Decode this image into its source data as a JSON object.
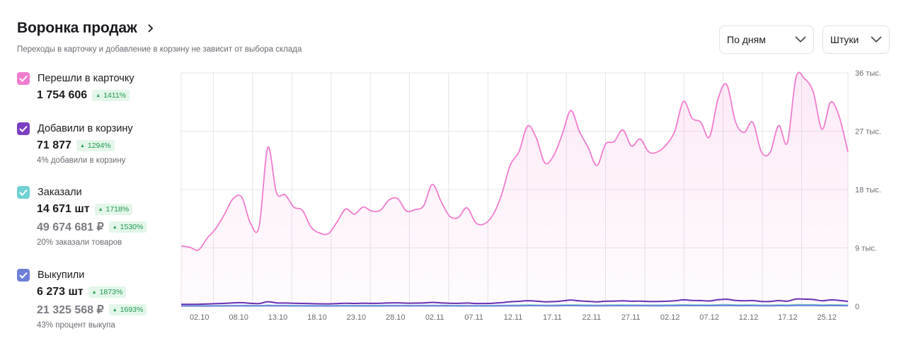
{
  "header": {
    "title": "Воронка продаж",
    "subtitle": "Переходы в карточку и добавление в корзину не зависит от выбора склада"
  },
  "controls": {
    "period": "По дням",
    "units": "Штуки"
  },
  "metrics": [
    {
      "label": "Перешли в карточку",
      "value": "1 754 606",
      "change": "1411%",
      "color": "#f07ccf"
    },
    {
      "label": "Добавили в корзину",
      "value": "71 877",
      "change": "1294%",
      "note": "4% добавили в корзину",
      "color": "#7a3fc0"
    },
    {
      "label": "Заказали",
      "value": "14 671 шт",
      "change": "1718%",
      "value2": "49 674 681 ₽",
      "change2": "1530%",
      "note": "20% заказали товаров",
      "color": "#6fd0d0"
    },
    {
      "label": "Выкупили",
      "value": "6 273 шт",
      "change": "1873%",
      "value2": "21 325 568 ₽",
      "change2": "1693%",
      "note": "43% процент выкупа",
      "color": "#6e7fd9"
    }
  ],
  "chart_data": {
    "type": "area",
    "x_ticks": [
      "02.10",
      "08.10",
      "13.10",
      "18.10",
      "23.10",
      "28.10",
      "02.11",
      "07.11",
      "12.11",
      "17.11",
      "22.11",
      "27.11",
      "02.12",
      "07.12",
      "12.12",
      "17.12",
      "25.12"
    ],
    "y_ticks": [
      "0",
      "9 тыс.",
      "18 тыс.",
      "27 тыс.",
      "36 тыс."
    ],
    "ylim": [
      0,
      36000
    ],
    "grid": true,
    "series": [
      {
        "name": "Перешли в карточку",
        "color": "#f07ccf",
        "fill": true,
        "values": [
          9300,
          9100,
          8700,
          10500,
          12000,
          14200,
          16600,
          16800,
          12800,
          12300,
          24500,
          17500,
          17200,
          15300,
          14800,
          12200,
          11300,
          11200,
          13000,
          15000,
          14200,
          15300,
          14700,
          14800,
          16400,
          16600,
          14700,
          14900,
          15500,
          18800,
          16200,
          13900,
          13700,
          15200,
          12900,
          12700,
          14100,
          17200,
          21800,
          23800,
          27800,
          26000,
          22100,
          23200,
          26500,
          30200,
          26900,
          24500,
          21700,
          25000,
          25400,
          27200,
          24700,
          25800,
          23800,
          23800,
          24900,
          27000,
          31600,
          29000,
          28400,
          26100,
          32000,
          34200,
          28500,
          26800,
          28400,
          23800,
          23700,
          27900,
          25200,
          35300,
          35100,
          33000,
          27300,
          31500,
          29200,
          23800
        ]
      },
      {
        "name": "Добавили в корзину",
        "color": "#6a2fb0",
        "fill": false,
        "values": [
          300,
          310,
          320,
          360,
          400,
          450,
          520,
          560,
          450,
          420,
          700,
          520,
          500,
          460,
          440,
          400,
          380,
          370,
          410,
          460,
          440,
          470,
          450,
          460,
          520,
          540,
          480,
          490,
          510,
          600,
          520,
          460,
          450,
          500,
          430,
          430,
          470,
          560,
          700,
          760,
          860,
          800,
          690,
          720,
          820,
          950,
          830,
          760,
          680,
          780,
          800,
          850,
          770,
          800,
          740,
          740,
          780,
          840,
          990,
          900,
          880,
          820,
          1000,
          1080,
          900,
          840,
          880,
          740,
          740,
          870,
          790,
          1100,
          1100,
          1040,
          850,
          980,
          910,
          740
        ]
      },
      {
        "name": "Заказали",
        "color": "#6fd0d0",
        "fill": false,
        "values": [
          70,
          70,
          75,
          80,
          90,
          100,
          110,
          120,
          100,
          95,
          150,
          115,
          110,
          105,
          100,
          95,
          90,
          88,
          95,
          105,
          100,
          108,
          104,
          106,
          118,
          122,
          110,
          112,
          116,
          135,
          120,
          106,
          104,
          114,
          100,
          100,
          108,
          126,
          155,
          168,
          190,
          178,
          155,
          160,
          182,
          210,
          186,
          170,
          152,
          174,
          178,
          190,
          172,
          178,
          165,
          165,
          174,
          188,
          220,
          200,
          196,
          182,
          222,
          240,
          200,
          186,
          196,
          165,
          165,
          194,
          176,
          245,
          245,
          232,
          190,
          218,
          202,
          165
        ]
      },
      {
        "name": "Выкупили",
        "color": "#6e7fd9",
        "fill": false,
        "values": [
          40,
          40,
          42,
          45,
          50,
          55,
          60,
          65,
          55,
          52,
          80,
          62,
          60,
          57,
          55,
          52,
          50,
          48,
          52,
          57,
          55,
          59,
          57,
          58,
          64,
          66,
          60,
          61,
          63,
          73,
          65,
          58,
          57,
          62,
          55,
          55,
          59,
          68,
          84,
          91,
          103,
          96,
          84,
          87,
          99,
          114,
          101,
          92,
          82,
          94,
          96,
          103,
          93,
          96,
          89,
          89,
          94,
          102,
          119,
          108,
          106,
          98,
          120,
          130,
          108,
          101,
          106,
          89,
          89,
          105,
          95,
          133,
          133,
          126,
          103,
          118,
          109,
          89
        ]
      }
    ]
  }
}
